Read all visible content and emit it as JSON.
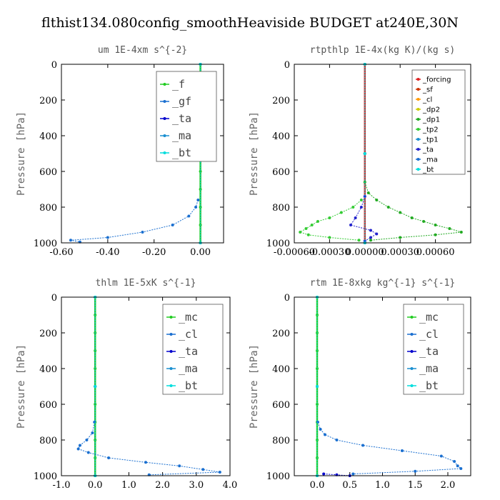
{
  "figure": {
    "title": "flthist134.080config_smoothHeaviside  BUDGET at240E,30N"
  },
  "chart_data": [
    {
      "type": "line",
      "title": "um  1E-4xm s^{-2}",
      "ylabel": "Pressure [hPa]",
      "xlim": [
        -0.6,
        0.1
      ],
      "ylim": [
        1000,
        0
      ],
      "xticks": [
        -0.6,
        -0.4,
        -0.2,
        0.0
      ],
      "xtick_labels": [
        "-0.60",
        "-0.40",
        "-0.20",
        "0.00"
      ],
      "yticks": [
        0,
        200,
        400,
        600,
        800,
        1000
      ],
      "ytick_labels": [
        "0",
        "200",
        "400",
        "600",
        "800",
        "1000"
      ],
      "legend_position": "top-right",
      "legend_font": "large",
      "series": [
        {
          "name": "_f",
          "color": "#22cc22",
          "y": [
            0,
            100,
            200,
            300,
            400,
            500,
            600,
            700,
            800,
            900,
            1000
          ],
          "x": [
            0,
            0,
            0,
            0,
            0,
            0,
            0,
            0,
            0,
            0,
            0
          ]
        },
        {
          "name": "_gf",
          "color": "#1a6fd0",
          "y": [
            760,
            800,
            850,
            900,
            940,
            970,
            985,
            995
          ],
          "x": [
            -0.01,
            -0.02,
            -0.05,
            -0.12,
            -0.25,
            -0.4,
            -0.56,
            -0.52
          ]
        },
        {
          "name": "_ta",
          "color": "#0000cc",
          "y": [
            0,
            500,
            1000
          ],
          "x": [
            0,
            0,
            0
          ]
        },
        {
          "name": "_ma",
          "color": "#1a8fd0",
          "y": [
            0,
            500,
            1000
          ],
          "x": [
            0,
            0,
            0
          ]
        },
        {
          "name": "_bt",
          "color": "#00dddd",
          "y": [
            0,
            500,
            1000
          ],
          "x": [
            0,
            0,
            0
          ]
        }
      ]
    },
    {
      "type": "line",
      "title": "rtpthlp  1E-4x(kg K)/(kg s)",
      "ylabel": "Pressure [hPa]",
      "xlim": [
        -0.0006,
        0.0009
      ],
      "ylim": [
        1000,
        0
      ],
      "xticks": [
        -0.0006,
        -0.0003,
        0.0,
        0.0003,
        0.0006
      ],
      "xtick_labels": [
        "-0.00060",
        "-0.00030",
        "0.00000",
        "0.00030",
        "0.00060"
      ],
      "yticks": [
        0,
        200,
        400,
        600,
        800,
        1000
      ],
      "ytick_labels": [
        "0",
        "200",
        "400",
        "600",
        "800",
        "1000"
      ],
      "legend_position": "top-right",
      "legend_font": "small",
      "series": [
        {
          "name": "_forcing",
          "color": "#dd2222",
          "y": [
            0,
            500,
            1000
          ],
          "x": [
            0,
            0,
            0
          ]
        },
        {
          "name": "_sf",
          "color": "#cc3300",
          "y": [
            0,
            500,
            1000
          ],
          "x": [
            0,
            0,
            0
          ]
        },
        {
          "name": "_cl",
          "color": "#ff9900",
          "y": [
            0,
            500,
            1000
          ],
          "x": [
            0,
            0,
            0
          ]
        },
        {
          "name": "_dp2",
          "color": "#cccc00",
          "y": [
            0,
            500,
            1000
          ],
          "x": [
            0,
            0,
            0
          ]
        },
        {
          "name": "_dp1",
          "color": "#22aa22",
          "y": [
            660,
            720,
            760,
            800,
            830,
            860,
            880,
            900,
            920,
            940,
            955,
            970,
            985
          ],
          "x": [
            0,
            3e-05,
            0.0001,
            0.0002,
            0.0003,
            0.0004,
            0.0005,
            0.0006,
            0.00072,
            0.00082,
            0.0006,
            0.0003,
            5e-05
          ]
        },
        {
          "name": "_tp2",
          "color": "#33cc33",
          "y": [
            760,
            800,
            830,
            860,
            880,
            900,
            920,
            940,
            955,
            970,
            985
          ],
          "x": [
            -3e-05,
            -0.0001,
            -0.0002,
            -0.0003,
            -0.0004,
            -0.00045,
            -0.0005,
            -0.00055,
            -0.00048,
            -0.0003,
            -5e-05
          ]
        },
        {
          "name": "_tp1",
          "color": "#1a8fd0",
          "y": [
            0,
            500,
            1000
          ],
          "x": [
            0,
            0,
            0
          ]
        },
        {
          "name": "_ta",
          "color": "#2222cc",
          "y": [
            740,
            800,
            860,
            900,
            930,
            950,
            970,
            990
          ],
          "x": [
            0,
            -3e-05,
            -8e-05,
            -0.00012,
            5e-05,
            0.0001,
            5e-05,
            0
          ]
        },
        {
          "name": "_ma",
          "color": "#1a6fd0",
          "y": [
            0,
            500,
            1000
          ],
          "x": [
            0,
            0,
            0
          ]
        },
        {
          "name": "_bt",
          "color": "#00dddd",
          "y": [
            0,
            500,
            1000
          ],
          "x": [
            0,
            0,
            0
          ]
        }
      ]
    },
    {
      "type": "line",
      "title": "thlm  1E-5xK s^{-1}",
      "ylabel": "Pressure [hPa]",
      "xlim": [
        -1.0,
        4.0
      ],
      "ylim": [
        1000,
        0
      ],
      "xticks": [
        -1.0,
        0.0,
        1.0,
        2.0,
        3.0,
        4.0
      ],
      "xtick_labels": [
        "-1.0",
        "0.0",
        "1.0",
        "2.0",
        "3.0",
        "4.0"
      ],
      "yticks": [
        0,
        200,
        400,
        600,
        800,
        1000
      ],
      "ytick_labels": [
        "0",
        "200",
        "400",
        "600",
        "800",
        "1000"
      ],
      "legend_position": "top-right",
      "legend_font": "large",
      "series": [
        {
          "name": "_mc",
          "color": "#22cc22",
          "y": [
            0,
            100,
            200,
            300,
            400,
            500,
            600,
            700,
            800,
            900,
            1000
          ],
          "x": [
            0,
            0,
            0,
            0,
            0,
            0,
            0,
            0,
            0,
            0,
            0
          ]
        },
        {
          "name": "_cl",
          "color": "#1a6fd0",
          "y": [
            700,
            760,
            800,
            830,
            850,
            870,
            900,
            925,
            945,
            965,
            980,
            995
          ],
          "x": [
            -0.02,
            -0.08,
            -0.25,
            -0.45,
            -0.5,
            -0.2,
            0.4,
            1.5,
            2.5,
            3.2,
            3.7,
            1.6
          ]
        },
        {
          "name": "_ta",
          "color": "#0000cc",
          "y": [
            0,
            500,
            1000
          ],
          "x": [
            0,
            0,
            0
          ]
        },
        {
          "name": "_ma",
          "color": "#1a8fd0",
          "y": [
            0,
            500,
            1000
          ],
          "x": [
            0,
            0,
            0
          ]
        },
        {
          "name": "_bt",
          "color": "#00dddd",
          "y": [
            0,
            500,
            1000
          ],
          "x": [
            0,
            0,
            0
          ]
        }
      ]
    },
    {
      "type": "line",
      "title": "rtm  1E-8xkg kg^{-1} s^{-1}",
      "ylabel": "Pressure [hPa]",
      "xlim": [
        -0.35,
        2.35
      ],
      "ylim": [
        1000,
        0
      ],
      "xticks": [
        0.0,
        0.5,
        1.0,
        1.5,
        2.0
      ],
      "xtick_labels": [
        "0.0",
        "0.5",
        "1.0",
        "1.5",
        "2.0"
      ],
      "yticks": [
        0,
        200,
        400,
        600,
        800,
        1000
      ],
      "ytick_labels": [
        "0",
        "200",
        "400",
        "600",
        "800",
        "1000"
      ],
      "legend_position": "top-right",
      "legend_font": "large",
      "series": [
        {
          "name": "_mc",
          "color": "#22cc22",
          "y": [
            0,
            100,
            200,
            300,
            400,
            500,
            600,
            700,
            800,
            900,
            1000
          ],
          "x": [
            0,
            0,
            0,
            0,
            0,
            0,
            0,
            0,
            0,
            0,
            0
          ]
        },
        {
          "name": "_cl",
          "color": "#1a6fd0",
          "y": [
            700,
            740,
            770,
            800,
            830,
            860,
            890,
            920,
            945,
            960,
            975,
            990
          ],
          "x": [
            0.01,
            0.05,
            0.12,
            0.3,
            0.7,
            1.3,
            1.9,
            2.1,
            2.15,
            2.2,
            1.5,
            0.55
          ]
        },
        {
          "name": "_ta",
          "color": "#0000cc",
          "y": [
            990,
            995,
            1000
          ],
          "x": [
            0.1,
            0.3,
            0.5
          ]
        },
        {
          "name": "_ma",
          "color": "#1a8fd0",
          "y": [
            0,
            500,
            1000
          ],
          "x": [
            0,
            0,
            0
          ]
        },
        {
          "name": "_bt",
          "color": "#00dddd",
          "y": [
            0,
            500,
            1000
          ],
          "x": [
            0,
            0,
            0
          ]
        }
      ]
    }
  ]
}
